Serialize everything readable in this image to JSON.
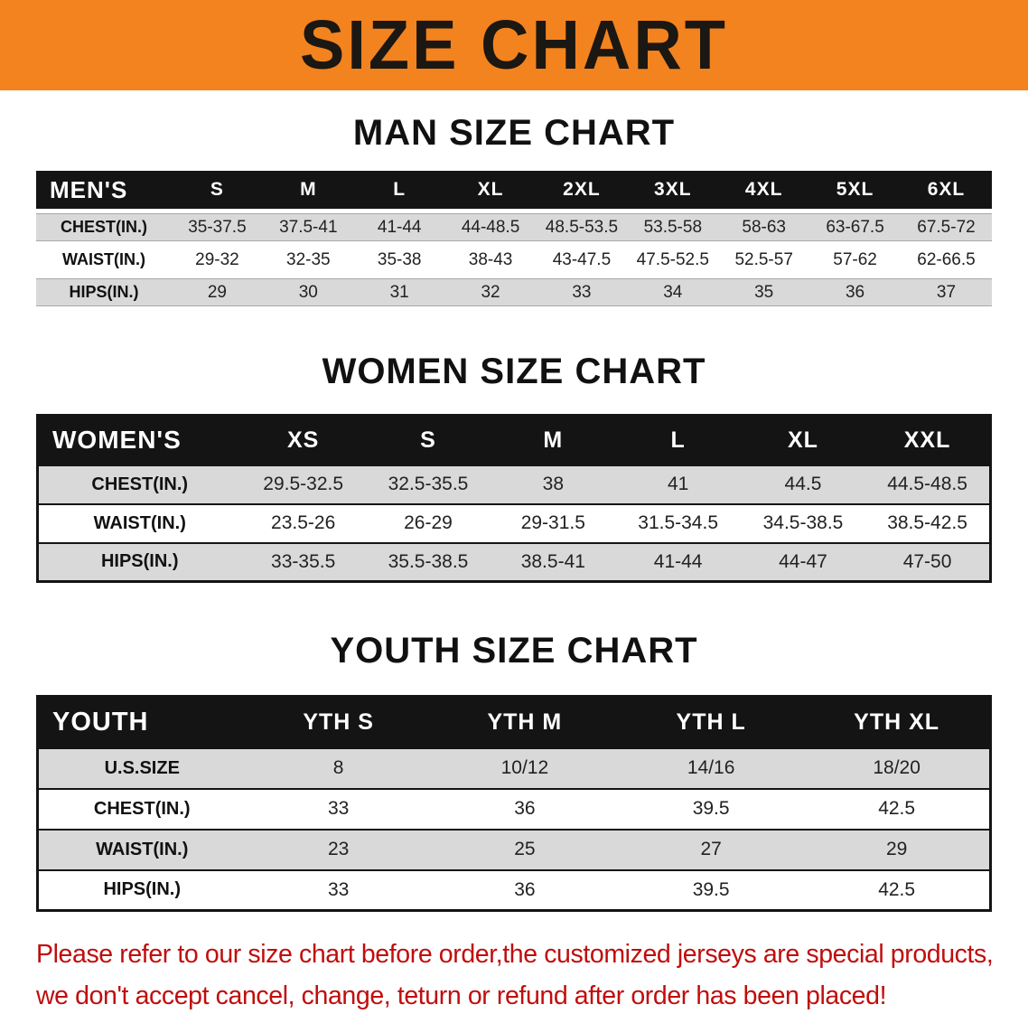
{
  "banner": {
    "title": "SIZE CHART",
    "background_color": "#f3831e",
    "text_color": "#1b1712"
  },
  "sections": [
    {
      "id": "men",
      "heading": "MAN SIZE CHART",
      "table": {
        "header": [
          "MEN'S",
          "S",
          "M",
          "L",
          "XL",
          "2XL",
          "3XL",
          "4XL",
          "5XL",
          "6XL"
        ],
        "rows": [
          [
            "CHEST(IN.)",
            "35-37.5",
            "37.5-41",
            "41-44",
            "44-48.5",
            "48.5-53.5",
            "53.5-58",
            "58-63",
            "63-67.5",
            "67.5-72"
          ],
          [
            "WAIST(IN.)",
            "29-32",
            "32-35",
            "35-38",
            "38-43",
            "43-47.5",
            "47.5-52.5",
            "52.5-57",
            "57-62",
            "62-66.5"
          ],
          [
            "HIPS(IN.)",
            "29",
            "30",
            "31",
            "32",
            "33",
            "34",
            "35",
            "36",
            "37"
          ]
        ]
      }
    },
    {
      "id": "women",
      "heading": "WOMEN SIZE CHART",
      "table": {
        "header": [
          "WOMEN'S",
          "XS",
          "S",
          "M",
          "L",
          "XL",
          "XXL"
        ],
        "rows": [
          [
            "CHEST(IN.)",
            "29.5-32.5",
            "32.5-35.5",
            "38",
            "41",
            "44.5",
            "44.5-48.5"
          ],
          [
            "WAIST(IN.)",
            "23.5-26",
            "26-29",
            "29-31.5",
            "31.5-34.5",
            "34.5-38.5",
            "38.5-42.5"
          ],
          [
            "HIPS(IN.)",
            "33-35.5",
            "35.5-38.5",
            "38.5-41",
            "41-44",
            "44-47",
            "47-50"
          ]
        ]
      }
    },
    {
      "id": "youth",
      "heading": "YOUTH SIZE CHART",
      "table": {
        "header": [
          "YOUTH",
          "YTH S",
          "YTH M",
          "YTH L",
          "YTH XL"
        ],
        "rows": [
          [
            "U.S.SIZE",
            "8",
            "10/12",
            "14/16",
            "18/20"
          ],
          [
            "CHEST(IN.)",
            "33",
            "36",
            "39.5",
            "42.5"
          ],
          [
            "WAIST(IN.)",
            "23",
            "25",
            "27",
            "29"
          ],
          [
            "HIPS(IN.)",
            "33",
            "36",
            "39.5",
            "42.5"
          ]
        ]
      }
    }
  ],
  "footer": {
    "lines": [
      "Please refer to our size chart before order,the customized jerseys are special products,",
      "we don't accept cancel, change, teturn or refund after order has been placed!"
    ],
    "text_color": "#c00d0d"
  },
  "colors": {
    "table_header_bg": "#141414",
    "table_header_text": "#ffffff",
    "row_shaded": "#d9d9d9",
    "row_plain": "#ffffff",
    "table_border": "#141414"
  }
}
